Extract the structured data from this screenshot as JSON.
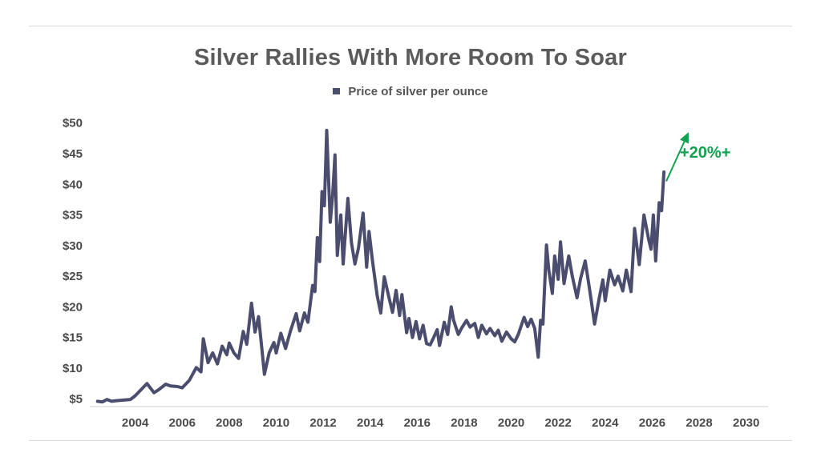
{
  "colors": {
    "line": "#4a4d6e",
    "axis": "#cccccc",
    "accent": "#12a150"
  },
  "chart_data": {
    "type": "line",
    "title": "Silver Rallies With More Room To Soar",
    "legend_position": "top-center",
    "xlabel": "",
    "ylabel": "",
    "xlim": [
      2002.0,
      2031.0
    ],
    "ylim": [
      4,
      51
    ],
    "y_ticks": [
      {
        "value": 5,
        "label": "$5"
      },
      {
        "value": 10,
        "label": "$10"
      },
      {
        "value": 15,
        "label": "$15"
      },
      {
        "value": 20,
        "label": "$20"
      },
      {
        "value": 25,
        "label": "$25"
      },
      {
        "value": 30,
        "label": "$30"
      },
      {
        "value": 35,
        "label": "$35"
      },
      {
        "value": 40,
        "label": "$40"
      },
      {
        "value": 45,
        "label": "$45"
      },
      {
        "value": 50,
        "label": "$50"
      }
    ],
    "x_ticks": [
      {
        "value": 2004,
        "label": "2004"
      },
      {
        "value": 2006,
        "label": "2006"
      },
      {
        "value": 2008,
        "label": "2008"
      },
      {
        "value": 2010,
        "label": "2010"
      },
      {
        "value": 2012,
        "label": "2012"
      },
      {
        "value": 2014,
        "label": "2014"
      },
      {
        "value": 2016,
        "label": "2016"
      },
      {
        "value": 2018,
        "label": "2018"
      },
      {
        "value": 2020,
        "label": "2020"
      },
      {
        "value": 2022,
        "label": "2022"
      },
      {
        "value": 2024,
        "label": "2024"
      },
      {
        "value": 2026,
        "label": "2026"
      },
      {
        "value": 2028,
        "label": "2028"
      },
      {
        "value": 2030,
        "label": "2030"
      }
    ],
    "grid": false,
    "series": [
      {
        "name": "Price of silver per ounce",
        "points": [
          [
            2002.4,
            4.6
          ],
          [
            2002.6,
            4.5
          ],
          [
            2002.8,
            4.9
          ],
          [
            2003.0,
            4.6
          ],
          [
            2003.2,
            4.7
          ],
          [
            2003.5,
            4.8
          ],
          [
            2003.8,
            4.9
          ],
          [
            2004.0,
            5.5
          ],
          [
            2004.2,
            6.3
          ],
          [
            2004.5,
            7.5
          ],
          [
            2004.8,
            6.0
          ],
          [
            2005.0,
            6.5
          ],
          [
            2005.3,
            7.4
          ],
          [
            2005.5,
            7.1
          ],
          [
            2005.8,
            7.0
          ],
          [
            2006.0,
            6.8
          ],
          [
            2006.3,
            8.0
          ],
          [
            2006.6,
            10.1
          ],
          [
            2006.8,
            9.4
          ],
          [
            2006.9,
            14.8
          ],
          [
            2007.1,
            10.9
          ],
          [
            2007.3,
            12.5
          ],
          [
            2007.5,
            10.7
          ],
          [
            2007.7,
            13.6
          ],
          [
            2007.9,
            12.2
          ],
          [
            2008.0,
            14.1
          ],
          [
            2008.2,
            12.5
          ],
          [
            2008.4,
            11.6
          ],
          [
            2008.6,
            16.0
          ],
          [
            2008.75,
            13.9
          ],
          [
            2008.95,
            20.6
          ],
          [
            2009.1,
            15.9
          ],
          [
            2009.25,
            18.4
          ],
          [
            2009.4,
            12.8
          ],
          [
            2009.5,
            9.0
          ],
          [
            2009.7,
            12.5
          ],
          [
            2009.9,
            14.2
          ],
          [
            2010.0,
            12.5
          ],
          [
            2010.2,
            15.7
          ],
          [
            2010.4,
            13.2
          ],
          [
            2010.6,
            16.0
          ],
          [
            2010.85,
            18.9
          ],
          [
            2011.0,
            16.1
          ],
          [
            2011.2,
            19.0
          ],
          [
            2011.35,
            17.5
          ],
          [
            2011.55,
            23.5
          ],
          [
            2011.65,
            22.5
          ],
          [
            2011.75,
            31.3
          ],
          [
            2011.85,
            27.4
          ],
          [
            2011.95,
            38.8
          ],
          [
            2012.05,
            36.5
          ],
          [
            2012.15,
            48.8
          ],
          [
            2012.3,
            33.8
          ],
          [
            2012.4,
            38.0
          ],
          [
            2012.5,
            44.8
          ],
          [
            2012.6,
            28.4
          ],
          [
            2012.75,
            35.0
          ],
          [
            2012.85,
            27.0
          ],
          [
            2013.05,
            37.7
          ],
          [
            2013.2,
            30.5
          ],
          [
            2013.35,
            27.0
          ],
          [
            2013.5,
            29.6
          ],
          [
            2013.7,
            35.3
          ],
          [
            2013.85,
            26.5
          ],
          [
            2013.95,
            32.3
          ],
          [
            2014.1,
            27.4
          ],
          [
            2014.3,
            21.8
          ],
          [
            2014.45,
            19.0
          ],
          [
            2014.6,
            24.9
          ],
          [
            2014.8,
            21.5
          ],
          [
            2014.95,
            19.1
          ],
          [
            2015.1,
            22.7
          ],
          [
            2015.25,
            18.6
          ],
          [
            2015.35,
            22.0
          ],
          [
            2015.55,
            15.8
          ],
          [
            2015.65,
            18.1
          ],
          [
            2015.8,
            15.0
          ],
          [
            2015.95,
            17.6
          ],
          [
            2016.1,
            14.8
          ],
          [
            2016.25,
            17.0
          ],
          [
            2016.4,
            14.0
          ],
          [
            2016.55,
            13.8
          ],
          [
            2016.7,
            15.0
          ],
          [
            2016.85,
            16.3
          ],
          [
            2016.95,
            13.7
          ],
          [
            2017.15,
            17.5
          ],
          [
            2017.3,
            15.5
          ],
          [
            2017.45,
            20.0
          ],
          [
            2017.55,
            17.8
          ],
          [
            2017.75,
            15.5
          ],
          [
            2017.9,
            16.6
          ],
          [
            2018.1,
            17.8
          ],
          [
            2018.25,
            16.7
          ],
          [
            2018.45,
            17.3
          ],
          [
            2018.6,
            15.0
          ],
          [
            2018.75,
            17.0
          ],
          [
            2018.95,
            15.6
          ],
          [
            2019.1,
            16.5
          ],
          [
            2019.3,
            15.3
          ],
          [
            2019.45,
            16.2
          ],
          [
            2019.6,
            14.4
          ],
          [
            2019.8,
            15.9
          ],
          [
            2020.0,
            14.8
          ],
          [
            2020.15,
            14.3
          ],
          [
            2020.3,
            15.5
          ],
          [
            2020.55,
            18.3
          ],
          [
            2020.7,
            16.8
          ],
          [
            2020.85,
            18.0
          ],
          [
            2021.0,
            16.5
          ],
          [
            2021.15,
            11.8
          ],
          [
            2021.25,
            17.8
          ],
          [
            2021.35,
            17.2
          ],
          [
            2021.5,
            30.1
          ],
          [
            2021.6,
            26.0
          ],
          [
            2021.75,
            22.2
          ],
          [
            2021.85,
            28.3
          ],
          [
            2022.0,
            24.5
          ],
          [
            2022.1,
            30.6
          ],
          [
            2022.25,
            23.8
          ],
          [
            2022.45,
            28.3
          ],
          [
            2022.6,
            25.0
          ],
          [
            2022.8,
            21.5
          ],
          [
            2022.95,
            24.6
          ],
          [
            2023.15,
            27.5
          ],
          [
            2023.35,
            22.5
          ],
          [
            2023.55,
            17.2
          ],
          [
            2023.75,
            21.5
          ],
          [
            2023.9,
            24.4
          ],
          [
            2024.0,
            21.0
          ],
          [
            2024.2,
            26.0
          ],
          [
            2024.4,
            23.6
          ],
          [
            2024.55,
            25.0
          ],
          [
            2024.75,
            22.6
          ],
          [
            2024.9,
            26.0
          ],
          [
            2025.1,
            22.5
          ],
          [
            2025.25,
            32.8
          ],
          [
            2025.45,
            26.9
          ],
          [
            2025.65,
            35.0
          ],
          [
            2025.85,
            31.0
          ],
          [
            2025.95,
            29.4
          ],
          [
            2026.05,
            35.0
          ],
          [
            2026.15,
            27.5
          ],
          [
            2026.3,
            37.0
          ],
          [
            2026.4,
            35.7
          ],
          [
            2026.5,
            42.0
          ]
        ]
      }
    ],
    "annotation": {
      "text": "+20%+",
      "arrow_from": [
        2026.6,
        40.5
      ],
      "arrow_to": [
        2027.55,
        48.5
      ]
    }
  }
}
